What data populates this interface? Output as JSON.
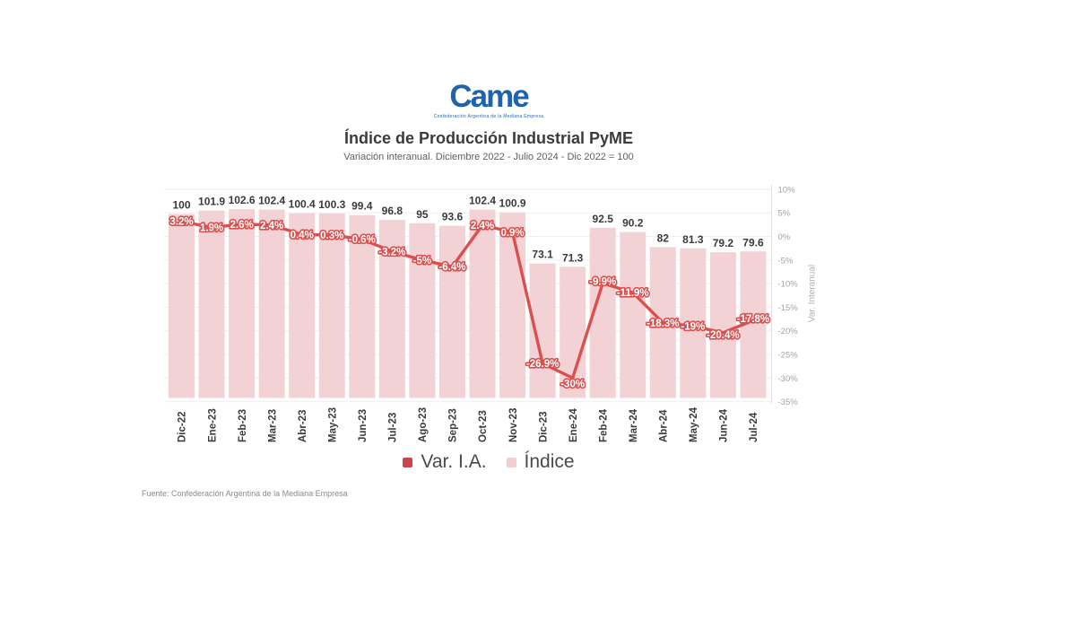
{
  "logo": {
    "name": "Came",
    "tagline": "Confederación Argentina de la Mediana Empresa",
    "color": "#1e63ad"
  },
  "header": {
    "title": "Índice de Producción Industrial PyME",
    "subtitle": "Variación interanual. Diciembre 2022 - Julio 2024 - Dic 2022 = 100"
  },
  "chart_data": {
    "type": "bar",
    "categories": [
      "Dic-22",
      "Ene-23",
      "Feb-23",
      "Mar-23",
      "Abr-23",
      "May-23",
      "Jun-23",
      "Jul-23",
      "Ago-23",
      "Sep-23",
      "Oct-23",
      "Nov-23",
      "Dic-23",
      "Ene-24",
      "Feb-24",
      "Mar-24",
      "Abr-24",
      "May-24",
      "Jun-24",
      "Jul-24"
    ],
    "series": [
      {
        "name": "Índice",
        "type": "bar",
        "values": [
          100,
          101.9,
          102.6,
          102.4,
          100.4,
          100.3,
          99.4,
          96.8,
          95,
          93.6,
          102.4,
          100.9,
          73.1,
          71.3,
          92.5,
          90.2,
          82,
          81.3,
          79.2,
          79.6
        ],
        "labels": [
          "100",
          "101.9",
          "102.6",
          "102.4",
          "100.4",
          "100.3",
          "99.4",
          "96.8",
          "95",
          "93.6",
          "102.4",
          "100.9",
          "73.1",
          "71.3",
          "92.5",
          "90.2",
          "82",
          "81.3",
          "79.2",
          "79.6"
        ],
        "color": "#f3d2d5"
      },
      {
        "name": "Var. I.A.",
        "type": "line",
        "values": [
          3.2,
          1.9,
          2.6,
          2.4,
          0.4,
          0.3,
          -0.6,
          -3.2,
          -5,
          -6.4,
          2.4,
          0.9,
          -26.9,
          -30,
          -9.9,
          -11.9,
          -18.3,
          -19,
          -20.4,
          -17.8
        ],
        "labels": [
          "3.2%",
          "1.9%",
          "2.6%",
          "2.4%",
          "0.4%",
          "0.3%",
          "-0.6%",
          "-3.2%",
          "-5%",
          "-6.4%",
          "2.4%",
          "0.9%",
          "-26.9%",
          "-30%",
          "-9.9%",
          "-11.9%",
          "-18.3%",
          "-19%",
          "-20.4%",
          "-17.8%"
        ],
        "color": "#d9504e"
      }
    ],
    "right_axis": {
      "title": "Var. Interanual",
      "tick_labels": [
        "10%",
        "5%",
        "0%",
        "-5%",
        "-10%",
        "-15%",
        "-20%",
        "-25%",
        "-30%",
        "-35%"
      ],
      "tick_values": [
        10,
        5,
        0,
        -5,
        -10,
        -15,
        -20,
        -25,
        -30,
        -35
      ],
      "range": [
        10,
        -35
      ]
    },
    "label_offsets_y": [
      0,
      0,
      0,
      0,
      0,
      0,
      0,
      0,
      0,
      0,
      0,
      0,
      0,
      6,
      -2,
      0,
      0,
      0,
      2,
      -2
    ],
    "grid": true,
    "grid_color": "#f1efee",
    "axis_line_color": "#e2dfdf",
    "bar_label_color": "#3a3a3a",
    "x_label_color": "#3b3b3b",
    "tick_label_color": "#a3a3a3",
    "legend_position": "bottom"
  },
  "legend": {
    "items": [
      {
        "label": "Var. I.A.",
        "color": "#c94847"
      },
      {
        "label": "Índice",
        "color": "#f0ced2"
      }
    ]
  },
  "footer": {
    "source": "Fuente: Confederación Argentina de la Mediana Empresa"
  }
}
